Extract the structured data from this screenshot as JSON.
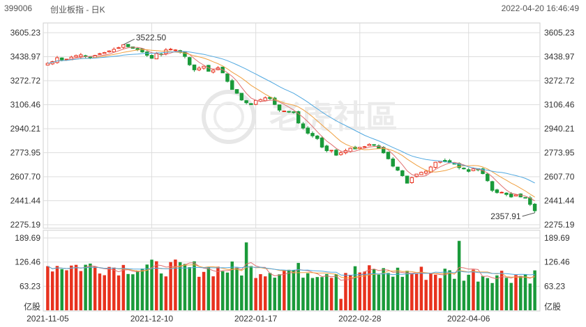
{
  "header": {
    "code": "399006",
    "name": "创业板指 - 日K",
    "timestamp": "2022-04-20 16:46:49"
  },
  "chart_data": {
    "type": "candlestick",
    "price_axis": {
      "ticks": [
        "3605.23",
        "3438.97",
        "3272.72",
        "3106.46",
        "2940.21",
        "2773.95",
        "2607.70",
        "2441.44",
        "2275.19"
      ],
      "range": [
        2275.19,
        3605.23
      ]
    },
    "volume_axis": {
      "ticks": [
        "189.69",
        "126.46",
        "63.23"
      ],
      "unit": "亿股",
      "range": [
        0,
        189.69
      ]
    },
    "x_ticks": [
      "2021-11-05",
      "2021-12-10",
      "2022-01-17",
      "2022-02-28",
      "2022-04-06"
    ],
    "annotations": {
      "high": {
        "label": "3522.50",
        "value": 3522.5
      },
      "low": {
        "label": "2357.91",
        "value": 2357.91
      }
    },
    "colors": {
      "up": "#e8321e",
      "down": "#1a9a3a",
      "ma5": "#e07070",
      "ma10": "#f0a040",
      "ma20": "#50a8e0",
      "grid": "#dddddd"
    },
    "closes": [
      3393,
      3405,
      3432,
      3418,
      3422,
      3436,
      3447,
      3452,
      3441,
      3430,
      3448,
      3460,
      3468,
      3479,
      3490,
      3502,
      3522,
      3508,
      3497,
      3487,
      3472,
      3449,
      3428,
      3461,
      3453,
      3486,
      3491,
      3486,
      3470,
      3441,
      3383,
      3348,
      3360,
      3373,
      3338,
      3346,
      3362,
      3327,
      3268,
      3212,
      3186,
      3139,
      3120,
      3107,
      3136,
      3142,
      3154,
      3149,
      3108,
      3069,
      3063,
      3058,
      3052,
      2980,
      2945,
      2909,
      2891,
      2872,
      2813,
      2788,
      2791,
      2757,
      2774,
      2789,
      2805,
      2800,
      2811,
      2816,
      2832,
      2826,
      2805,
      2773,
      2732,
      2681,
      2653,
      2615,
      2563,
      2602,
      2626,
      2638,
      2646,
      2675,
      2708,
      2715,
      2712,
      2706,
      2696,
      2671,
      2662,
      2645,
      2662,
      2655,
      2629,
      2580,
      2513,
      2498,
      2500,
      2485,
      2468,
      2482,
      2468,
      2464,
      2416,
      2372
    ]
  }
}
